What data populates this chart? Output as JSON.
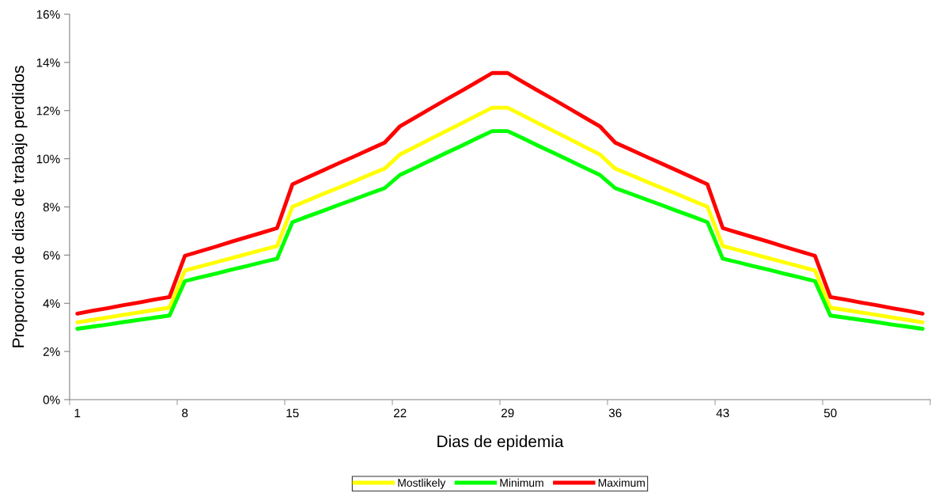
{
  "chart_data": {
    "type": "line",
    "xlabel": "Dias de epidemia",
    "ylabel": "Proporcion de dias de trabajo perdidos",
    "categories": [
      "1",
      null,
      null,
      null,
      null,
      null,
      null,
      "8",
      null,
      null,
      null,
      null,
      null,
      null,
      "15",
      null,
      null,
      null,
      null,
      null,
      null,
      "22",
      null,
      null,
      null,
      null,
      null,
      null,
      "29",
      null,
      null,
      null,
      null,
      null,
      null,
      "36",
      null,
      null,
      null,
      null,
      null,
      null,
      "43",
      null,
      null,
      null,
      null,
      null,
      null,
      "50",
      null,
      null,
      null,
      null,
      null,
      null
    ],
    "series": [
      {
        "name": "Mostlikely",
        "color": "#ffff00",
        "values": [
          3.21,
          3.31,
          3.41,
          3.52,
          3.62,
          3.72,
          3.82,
          5.36,
          5.53,
          5.7,
          5.87,
          6.04,
          6.21,
          6.38,
          8.01,
          8.27,
          8.54,
          8.8,
          9.06,
          9.33,
          9.59,
          10.18,
          10.5,
          10.83,
          11.15,
          11.47,
          11.8,
          12.12,
          12.12,
          11.8,
          11.47,
          11.15,
          10.83,
          10.5,
          10.18,
          9.59,
          9.33,
          9.06,
          8.8,
          8.54,
          8.27,
          8.01,
          6.38,
          6.21,
          6.04,
          5.87,
          5.7,
          5.53,
          5.36,
          3.82,
          3.72,
          3.62,
          3.52,
          3.41,
          3.31,
          3.21
        ]
      },
      {
        "name": "Minimum",
        "color": "#00ff00",
        "values": [
          2.94,
          3.03,
          3.12,
          3.22,
          3.31,
          3.4,
          3.49,
          4.92,
          5.08,
          5.23,
          5.39,
          5.54,
          5.7,
          5.85,
          7.37,
          7.61,
          7.84,
          8.08,
          8.31,
          8.55,
          8.78,
          9.33,
          9.63,
          9.94,
          10.24,
          10.54,
          10.85,
          11.15,
          11.15,
          10.85,
          10.54,
          10.24,
          9.94,
          9.63,
          9.33,
          8.78,
          8.55,
          8.31,
          8.08,
          7.84,
          7.61,
          7.37,
          5.85,
          5.7,
          5.54,
          5.39,
          5.23,
          5.08,
          4.92,
          3.49,
          3.4,
          3.31,
          3.22,
          3.12,
          3.03,
          2.94
        ]
      },
      {
        "name": "Maximum",
        "color": "#ff0000",
        "values": [
          3.57,
          3.69,
          3.8,
          3.92,
          4.03,
          4.15,
          4.26,
          5.97,
          6.16,
          6.35,
          6.55,
          6.74,
          6.93,
          7.12,
          8.94,
          9.23,
          9.52,
          9.81,
          10.09,
          10.38,
          10.67,
          11.35,
          11.72,
          12.09,
          12.46,
          12.82,
          13.19,
          13.56,
          13.56,
          13.19,
          12.82,
          12.46,
          12.09,
          11.72,
          11.35,
          10.67,
          10.38,
          10.09,
          9.81,
          9.52,
          9.23,
          8.94,
          7.12,
          6.93,
          6.74,
          6.55,
          6.35,
          6.16,
          5.97,
          4.26,
          4.15,
          4.03,
          3.92,
          3.8,
          3.69,
          3.57
        ]
      }
    ],
    "ylim": [
      0,
      16
    ],
    "yticks": [
      {
        "value": 0,
        "label": "0%"
      },
      {
        "value": 2,
        "label": "2%"
      },
      {
        "value": 4,
        "label": "4%"
      },
      {
        "value": 6,
        "label": "6%"
      },
      {
        "value": 8,
        "label": "8%"
      },
      {
        "value": 10,
        "label": "10%"
      },
      {
        "value": 12,
        "label": "12%"
      },
      {
        "value": 14,
        "label": "14%"
      },
      {
        "value": 16,
        "label": "16%"
      }
    ],
    "grid": false,
    "legend": "bottom",
    "marker": "none",
    "line_style": "solid"
  }
}
